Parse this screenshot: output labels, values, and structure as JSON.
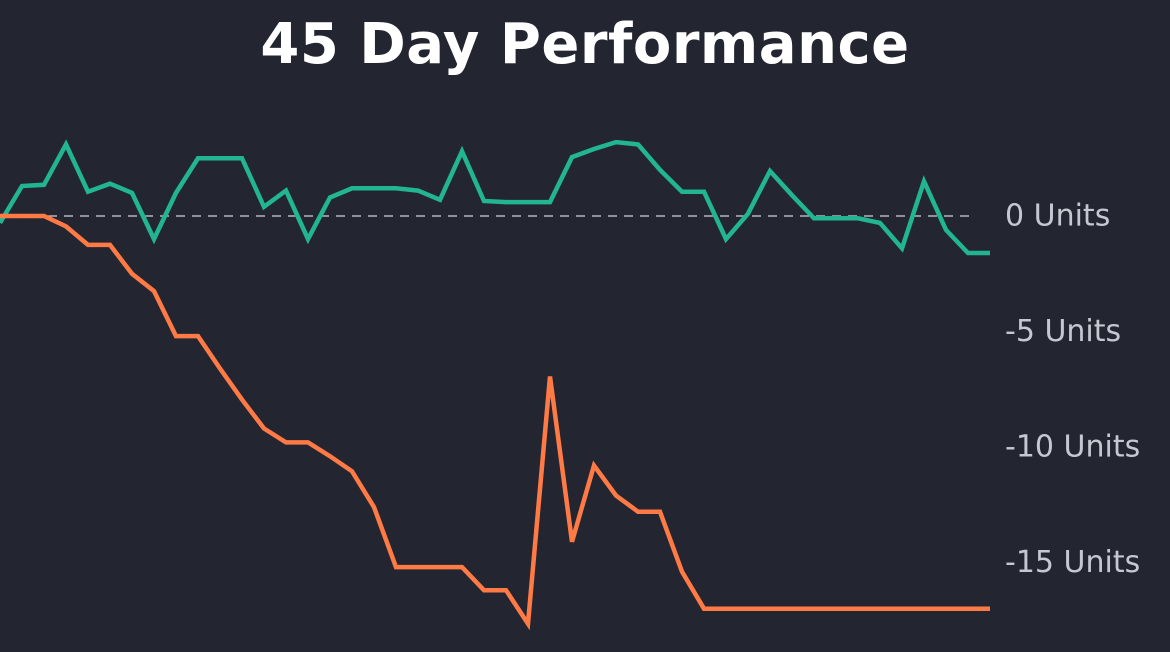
{
  "chart_data": {
    "type": "line",
    "title": "45 Day Performance",
    "xlabel": "",
    "ylabel": "",
    "ylim": [
      -18,
      4
    ],
    "y_ticks": [
      0,
      -5,
      -10,
      -15
    ],
    "y_tick_labels": [
      "0 Units",
      "-5 Units",
      "-10 Units",
      "-15 Units"
    ],
    "y_axis_position": "right",
    "legend": "none",
    "grid": false,
    "reference_line": {
      "y": 0,
      "style": "dashed"
    },
    "x": [
      0,
      1,
      2,
      3,
      4,
      5,
      6,
      7,
      8,
      9,
      10,
      11,
      12,
      13,
      14,
      15,
      16,
      17,
      18,
      19,
      20,
      21,
      22,
      23,
      24,
      25,
      26,
      27,
      28,
      29,
      30,
      31,
      32,
      33,
      34,
      35,
      36,
      37,
      38,
      39,
      40,
      41,
      42,
      43,
      44,
      45
    ],
    "series": [
      {
        "color": "#22b592",
        "values": [
          -0.3,
          1.3,
          1.35,
          3.1,
          1.05,
          1.4,
          1.0,
          -1.0,
          1.0,
          2.5,
          2.5,
          2.5,
          0.4,
          1.1,
          -1.0,
          0.8,
          1.2,
          1.2,
          1.2,
          1.1,
          0.7,
          2.8,
          0.65,
          0.6,
          0.6,
          0.6,
          2.55,
          2.9,
          3.2,
          3.1,
          2.0,
          1.05,
          1.05,
          -1.0,
          0.1,
          1.95,
          0.9,
          -0.1,
          -0.1,
          -0.1,
          -0.3,
          -1.4,
          1.5,
          -0.6,
          -1.6,
          -1.6
        ]
      },
      {
        "color": "#ff7a45",
        "values": [
          0,
          0,
          0,
          -0.45,
          -1.25,
          -1.25,
          -2.5,
          -3.25,
          -5.2,
          -5.2,
          -6.6,
          -7.95,
          -9.2,
          -9.8,
          -9.8,
          -10.4,
          -11.05,
          -12.6,
          -15.2,
          -15.2,
          -15.2,
          -15.2,
          -16.2,
          -16.2,
          -17.65,
          -6.95,
          -14.1,
          -10.8,
          -12.1,
          -12.8,
          -12.8,
          -15.4,
          -17.0,
          -17.0,
          -17.0,
          -17.0,
          -17.0,
          -17.0,
          -17.0,
          -17.0,
          -17.0,
          -17.0,
          -17.0,
          -17.0,
          -17.0,
          -17.0
        ]
      }
    ]
  }
}
